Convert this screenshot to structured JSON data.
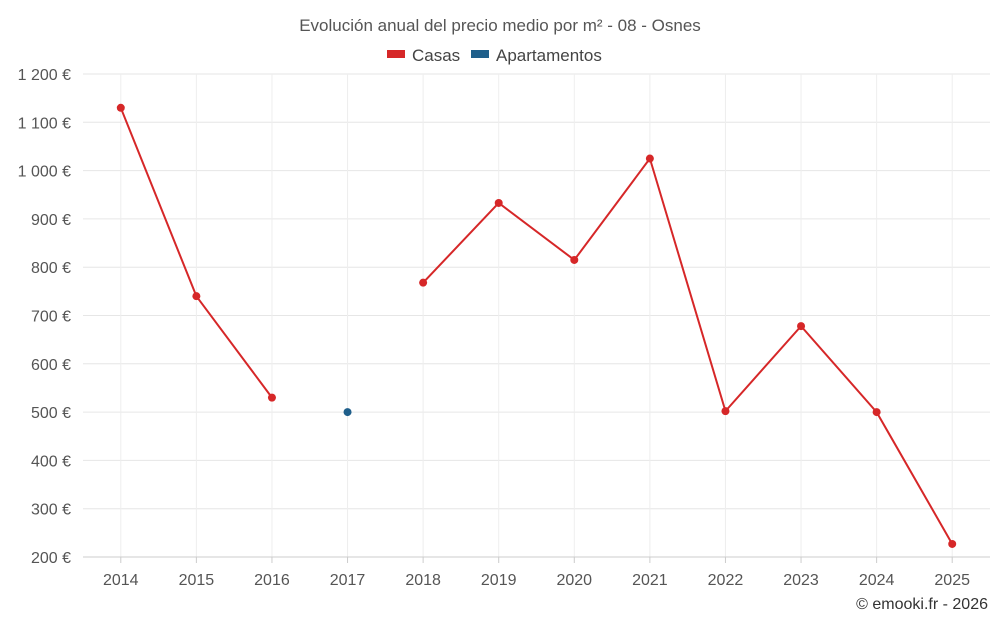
{
  "chart_data": {
    "type": "line",
    "title": "Evolución anual del precio medio por m² - 08 - Osnes",
    "categories": [
      "2014",
      "2015",
      "2016",
      "2017",
      "2018",
      "2019",
      "2020",
      "2021",
      "2022",
      "2023",
      "2024",
      "2025"
    ],
    "series": [
      {
        "name": "Casas",
        "color": "#d62728",
        "values": [
          1130,
          740,
          530,
          null,
          768,
          933,
          815,
          1025,
          502,
          678,
          500,
          227
        ]
      },
      {
        "name": "Apartamentos",
        "color": "#1f5f8b",
        "values": [
          null,
          null,
          null,
          500,
          null,
          null,
          null,
          null,
          null,
          null,
          null,
          null
        ]
      }
    ],
    "ylim": [
      200,
      1200
    ],
    "yticks": [
      200,
      300,
      400,
      500,
      600,
      700,
      800,
      900,
      1000,
      1100,
      1200
    ],
    "yticklabels": [
      "200 €",
      "300 €",
      "400 €",
      "500 €",
      "600 €",
      "700 €",
      "800 €",
      "900 €",
      "1 000 €",
      "1 100 €",
      "1 200 €"
    ],
    "xlabel": "",
    "ylabel": "",
    "grid": true,
    "legend_position": "top-center"
  },
  "credit": "© emooki.fr - 2026"
}
